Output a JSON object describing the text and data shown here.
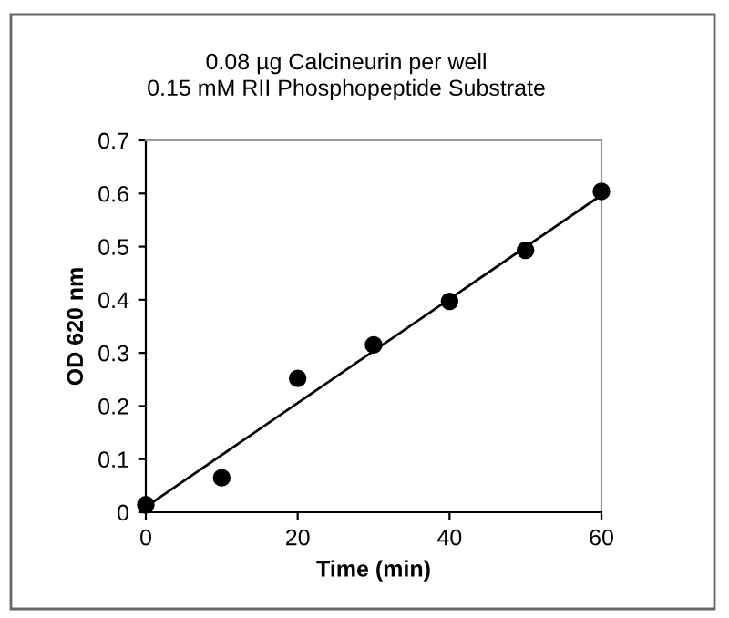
{
  "chart_data": {
    "type": "scatter",
    "title": "0.08 µg Calcineurin per well\n0.15 mM RII Phosphopeptide Substrate",
    "xlabel": "Time (min)",
    "ylabel": "OD 620 nm",
    "series": [
      {
        "color": "#000000",
        "marker": "circle",
        "x": [
          0,
          10,
          20,
          30,
          40,
          50,
          60
        ],
        "values": [
          0.014,
          0.065,
          0.252,
          0.315,
          0.397,
          0.493,
          0.604
        ]
      },
      {
        "type": "line",
        "color": "#000000",
        "x": [
          0,
          60
        ],
        "values": [
          0.01,
          0.597
        ]
      }
    ],
    "xlim": [
      0,
      60
    ],
    "xticks": [
      0,
      20,
      40,
      60
    ],
    "ylim": [
      0,
      0.7
    ],
    "yticks": [
      0,
      0.1,
      0.2,
      0.3,
      0.4,
      0.5,
      0.6,
      0.7
    ],
    "grid": false,
    "legend": false
  }
}
